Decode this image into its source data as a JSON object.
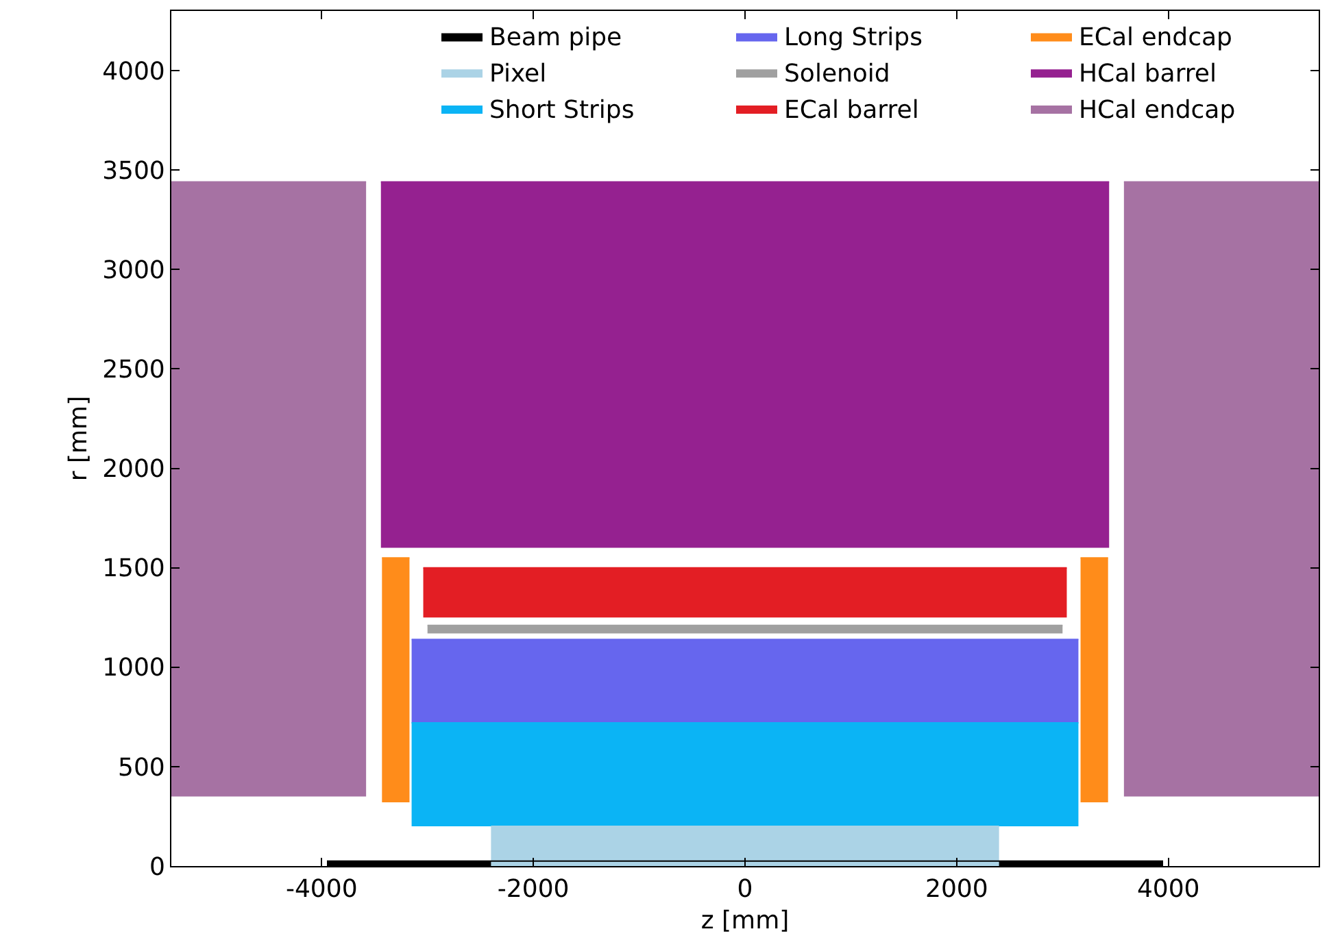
{
  "chart_data": {
    "type": "line",
    "xlabel": "z [mm]",
    "ylabel": "r [mm]",
    "xlim": [
      -5420,
      5420
    ],
    "ylim": [
      0,
      4300
    ],
    "xticks": [
      -4000,
      -2000,
      0,
      2000,
      4000
    ],
    "yticks": [
      0,
      500,
      1000,
      1500,
      2000,
      2500,
      3000,
      3500,
      4000
    ],
    "grid": false,
    "legend": "top right",
    "series": [
      {
        "name": "Beam pipe",
        "color": "#000000",
        "x": [
          -3950,
          3950
        ],
        "lower": [
          0,
          0
        ],
        "upper": [
          25,
          25
        ],
        "values": [
          25,
          25
        ]
      },
      {
        "name": "Pixel",
        "color": "#abd3e6",
        "x": [
          -2400,
          2400
        ],
        "lower": [
          0,
          0
        ],
        "upper": [
          200,
          200
        ],
        "values": [
          200,
          200
        ]
      },
      {
        "name": "Short Strips",
        "color": "#0bb4f5",
        "x": [
          -3150,
          3150
        ],
        "lower": [
          200,
          200
        ],
        "upper": [
          720,
          720
        ],
        "values": [
          720,
          720
        ]
      },
      {
        "name": "Long Strips",
        "color": "#6666ee",
        "x": [
          -3150,
          3150
        ],
        "lower": [
          720,
          720
        ],
        "upper": [
          1140,
          1140
        ],
        "values": [
          1140,
          1140
        ]
      },
      {
        "name": "Solenoid",
        "color": "#a0a0a0",
        "x": [
          -3000,
          3000
        ],
        "lower": [
          1170,
          1170
        ],
        "upper": [
          1210,
          1210
        ],
        "values": [
          1210,
          1210
        ]
      },
      {
        "name": "ECal barrel",
        "color": "#e31e24",
        "x": [
          -3040,
          3040
        ],
        "lower": [
          1250,
          1250
        ],
        "upper": [
          1500,
          1500
        ],
        "values": [
          1500,
          1500
        ]
      },
      {
        "name": "ECal endcap",
        "color": "#ff8c1a",
        "x": [
          -3430,
          -3170,
          null,
          3170,
          3430
        ],
        "lower": [
          320,
          320,
          null,
          320,
          320
        ],
        "upper": [
          1550,
          1550,
          null,
          1550,
          1550
        ],
        "values": [
          1550,
          1550,
          null,
          1550,
          1550
        ]
      },
      {
        "name": "HCal barrel",
        "color": "#952190",
        "x": [
          -3440,
          3440
        ],
        "lower": [
          1600,
          1600
        ],
        "upper": [
          3440,
          3440
        ],
        "values": [
          3440,
          3440
        ]
      },
      {
        "name": "HCal endcap",
        "color": "#a672a3",
        "x": [
          -5420,
          -3580,
          null,
          3580,
          5420
        ],
        "lower": [
          350,
          350,
          null,
          350,
          350
        ],
        "upper": [
          3440,
          3440,
          null,
          3440,
          3440
        ],
        "values": [
          3440,
          3440,
          null,
          3440,
          3440
        ]
      }
    ]
  }
}
